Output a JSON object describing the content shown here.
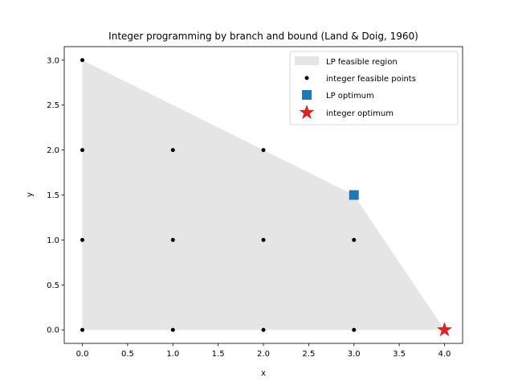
{
  "chart_data": {
    "type": "scatter",
    "title": "Integer programming by branch and bound (Land & Doig, 1960)",
    "xlabel": "x",
    "ylabel": "y",
    "xlim": [
      -0.2,
      4.2
    ],
    "ylim": [
      -0.15,
      3.15
    ],
    "xticks": [
      0.0,
      0.5,
      1.0,
      1.5,
      2.0,
      2.5,
      3.0,
      3.5,
      4.0
    ],
    "xtick_labels": [
      "0.0",
      "0.5",
      "1.0",
      "1.5",
      "2.0",
      "2.5",
      "3.0",
      "3.5",
      "4.0"
    ],
    "yticks": [
      0.0,
      0.5,
      1.0,
      1.5,
      2.0,
      2.5,
      3.0
    ],
    "ytick_labels": [
      "0.0",
      "0.5",
      "1.0",
      "1.5",
      "2.0",
      "2.5",
      "3.0"
    ],
    "grid": false,
    "legend_position": "top-right",
    "feasible_region": {
      "name": "LP feasible region",
      "color": "#e5e5e5",
      "vertices": [
        [
          0,
          0
        ],
        [
          0,
          3
        ],
        [
          3,
          1.5
        ],
        [
          4,
          0
        ]
      ]
    },
    "integer_points": {
      "name": "integer feasible points",
      "color": "#000000",
      "points": [
        [
          0,
          0
        ],
        [
          1,
          0
        ],
        [
          2,
          0
        ],
        [
          3,
          0
        ],
        [
          0,
          1
        ],
        [
          1,
          1
        ],
        [
          2,
          1
        ],
        [
          3,
          1
        ],
        [
          0,
          2
        ],
        [
          1,
          2
        ],
        [
          2,
          2
        ],
        [
          0,
          3
        ]
      ]
    },
    "lp_optimum": {
      "name": "LP optimum",
      "color": "#1f77b4",
      "marker": "square",
      "point": [
        3,
        1.5
      ]
    },
    "integer_optimum": {
      "name": "integer optimum",
      "color": "#d62728",
      "marker": "star",
      "point": [
        4,
        0
      ]
    }
  }
}
